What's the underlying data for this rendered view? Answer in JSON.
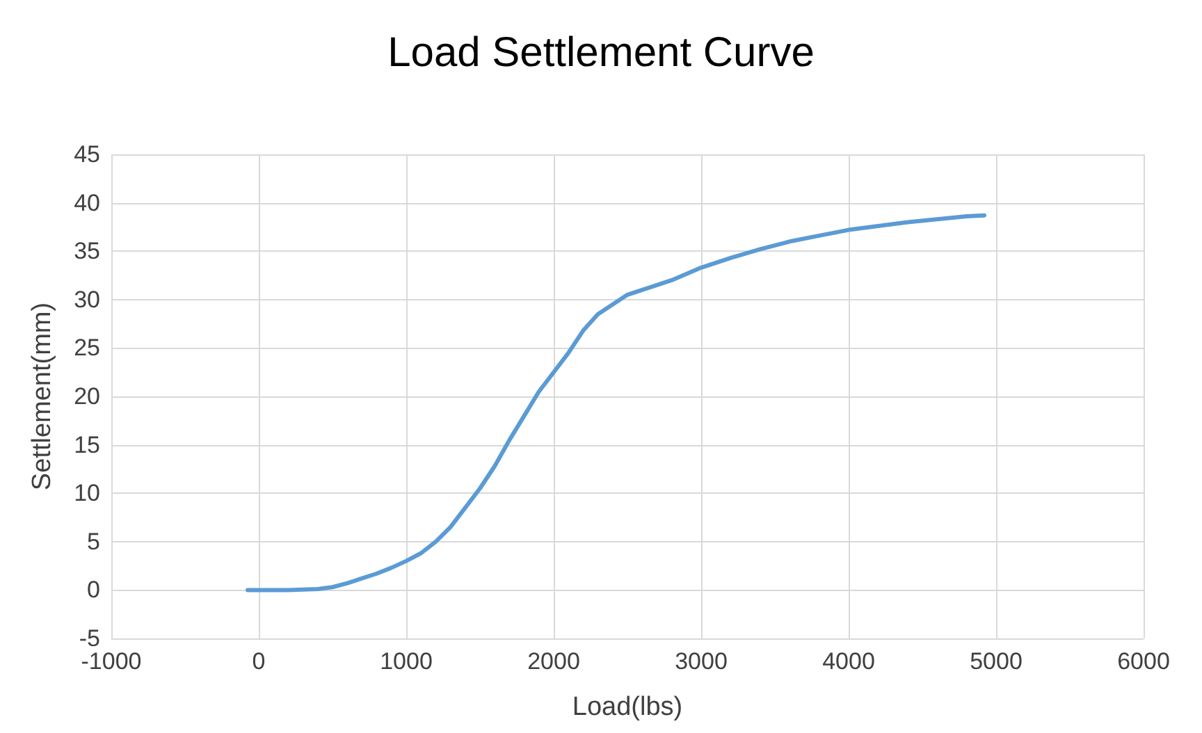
{
  "chart_data": {
    "type": "line",
    "title": "Load Settlement Curve",
    "xlabel": "Load(lbs)",
    "ylabel": "Settlement(mm)",
    "x": [
      -75,
      0,
      200,
      400,
      500,
      600,
      700,
      800,
      900,
      1000,
      1100,
      1200,
      1300,
      1400,
      1500,
      1600,
      1700,
      1800,
      1900,
      2000,
      2100,
      2200,
      2300,
      2400,
      2500,
      2600,
      2800,
      3000,
      3200,
      3400,
      3600,
      3800,
      4000,
      4200,
      4400,
      4600,
      4800,
      4920
    ],
    "series": [
      {
        "color": "#5b9bd5",
        "values": [
          0,
          0,
          0,
          0.1,
          0.3,
          0.7,
          1.2,
          1.7,
          2.3,
          3,
          3.8,
          5,
          6.5,
          8.5,
          10.5,
          12.8,
          15.5,
          18,
          20.5,
          22.5,
          24.5,
          26.8,
          28.5,
          29.5,
          30.5,
          31,
          32,
          33.3,
          34.3,
          35.2,
          36,
          36.6,
          37.2,
          37.6,
          38,
          38.3,
          38.6,
          38.7
        ]
      }
    ],
    "xlim": [
      -1000,
      6000
    ],
    "xticks": [
      -1000,
      0,
      1000,
      2000,
      3000,
      4000,
      5000,
      6000
    ],
    "ylim": [
      -5,
      45
    ],
    "yticks": [
      -5,
      0,
      5,
      10,
      15,
      20,
      25,
      30,
      35,
      40,
      45
    ],
    "grid": true,
    "marker": "none",
    "line_style": "solid"
  }
}
